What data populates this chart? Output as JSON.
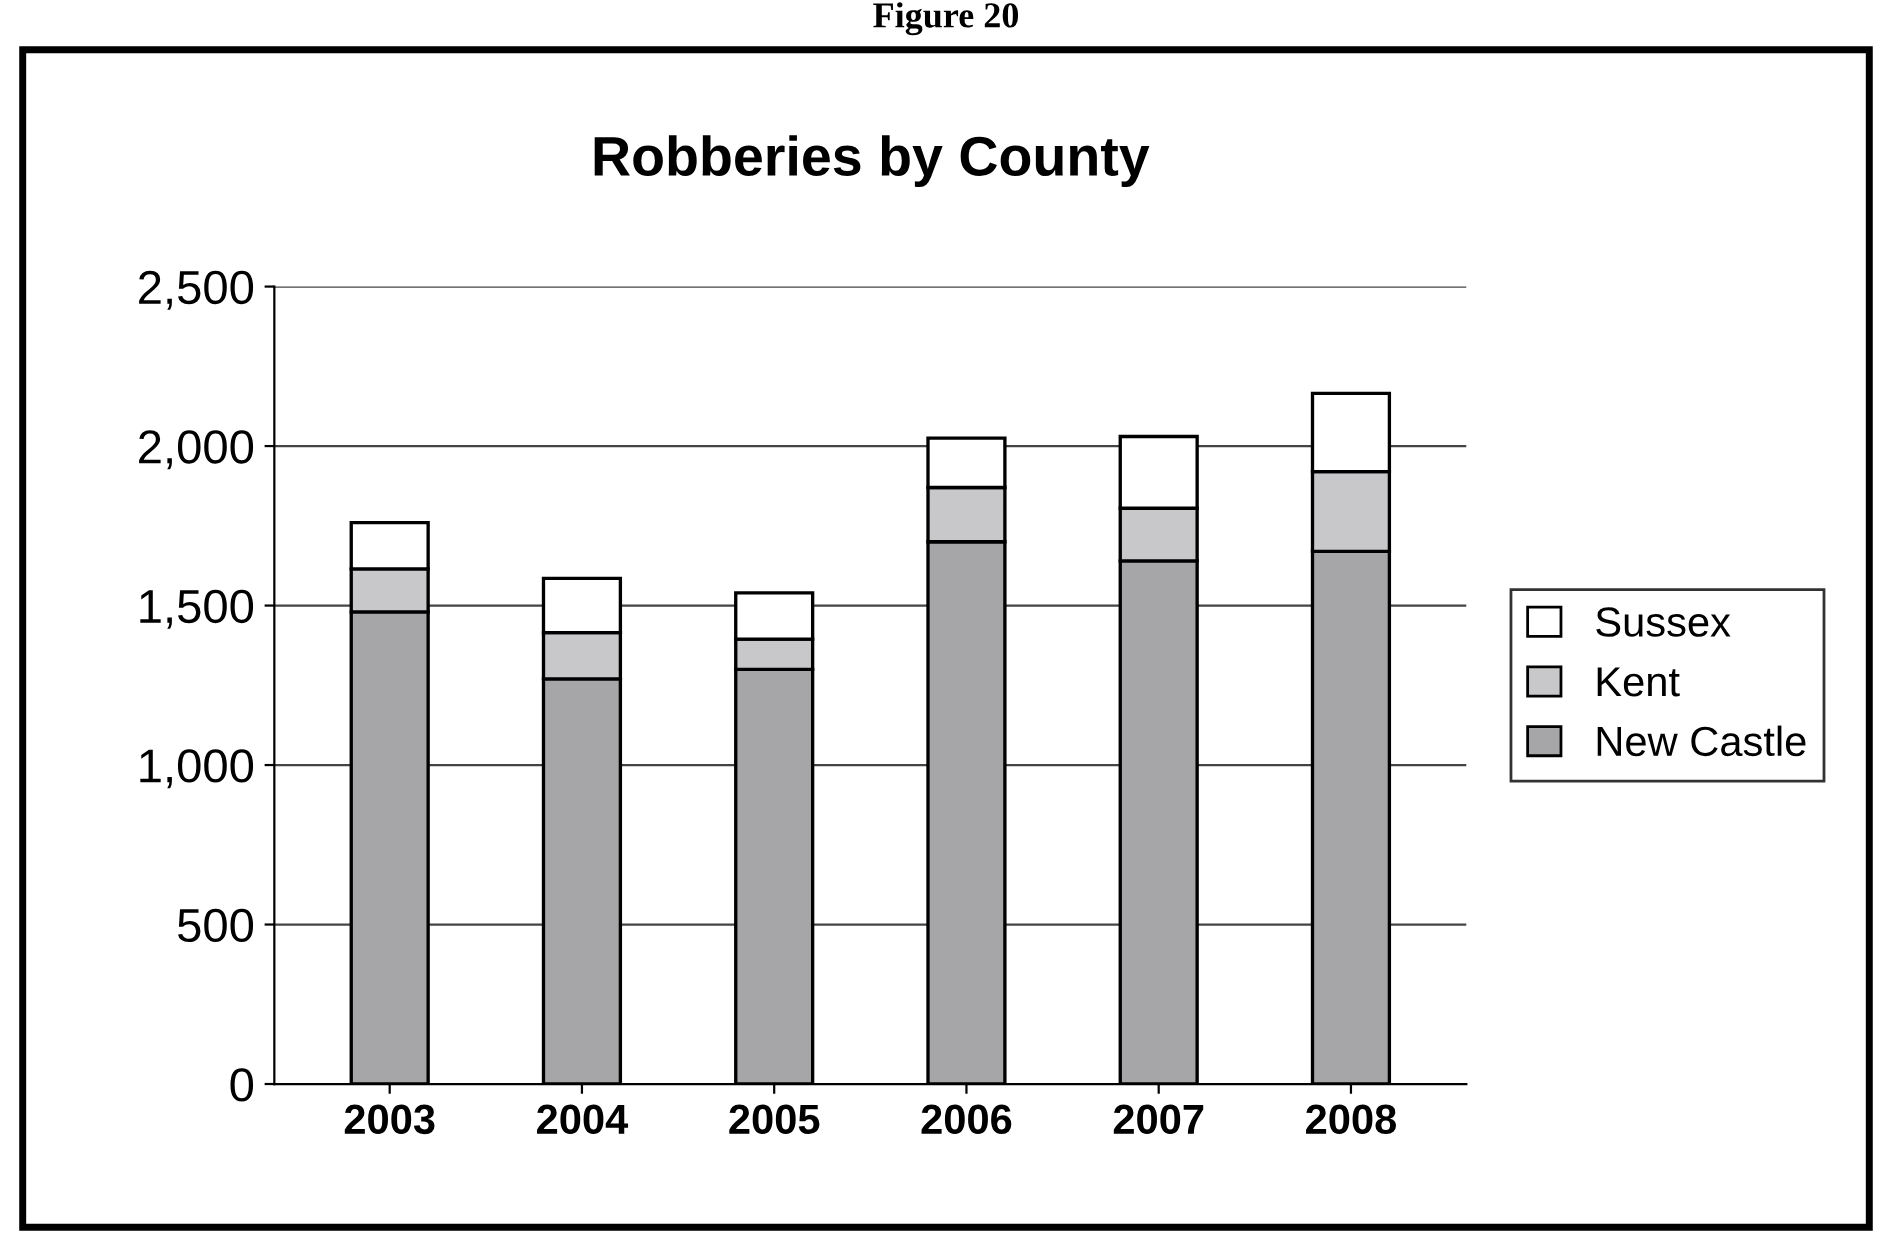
{
  "chart_data": {
    "type": "bar",
    "title": "Robberies by County",
    "annotations": [
      "Figure 20"
    ],
    "categories": [
      "2003",
      "2004",
      "2005",
      "2006",
      "2007",
      "2008"
    ],
    "stacked": true,
    "series": [
      {
        "name": "New Castle",
        "color": "#a6a6a8",
        "values": [
          1480,
          1270,
          1300,
          1700,
          1640,
          1670
        ]
      },
      {
        "name": "Kent",
        "color": "#c8c8ca",
        "values": [
          135,
          145,
          95,
          170,
          165,
          250
        ]
      },
      {
        "name": "Sussex",
        "color": "#ffffff",
        "values": [
          145,
          170,
          145,
          155,
          225,
          245
        ]
      }
    ],
    "ylim": [
      0,
      2500
    ],
    "yticks": [
      0,
      500,
      {
        "value": 1000,
        "label": "1,000"
      },
      {
        "value": 1500,
        "label": "1,500"
      },
      {
        "value": 2000,
        "label": "2,000"
      },
      {
        "value": 2500,
        "label": "2,500"
      }
    ],
    "grid": "y",
    "legend": "right"
  }
}
